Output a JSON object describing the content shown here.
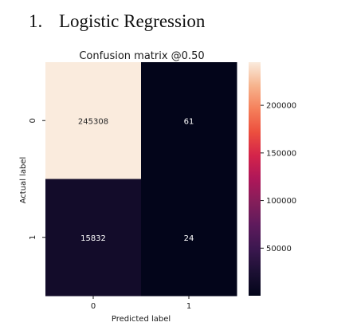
{
  "heading": {
    "number": "1.",
    "text": "Logistic Regression"
  },
  "chart_data": {
    "type": "heatmap",
    "title": "Confusion matrix @0.50",
    "xlabel": "Predicted label",
    "ylabel": "Actual label",
    "x_categories": [
      "0",
      "1"
    ],
    "y_categories": [
      "0",
      "1"
    ],
    "values": [
      [
        245308,
        61
      ],
      [
        15832,
        24
      ]
    ],
    "colormap": "rocket",
    "colorbar": {
      "ticks": [
        50000,
        100000,
        150000,
        200000
      ],
      "tick_labels": [
        "50000",
        "100000",
        "150000",
        "200000"
      ],
      "min": 24,
      "max": 245308
    },
    "colors": {
      "high": "#faeadc",
      "low": "#03051a",
      "text_on_light": "#262626",
      "text_on_dark": "#ffffff"
    }
  }
}
